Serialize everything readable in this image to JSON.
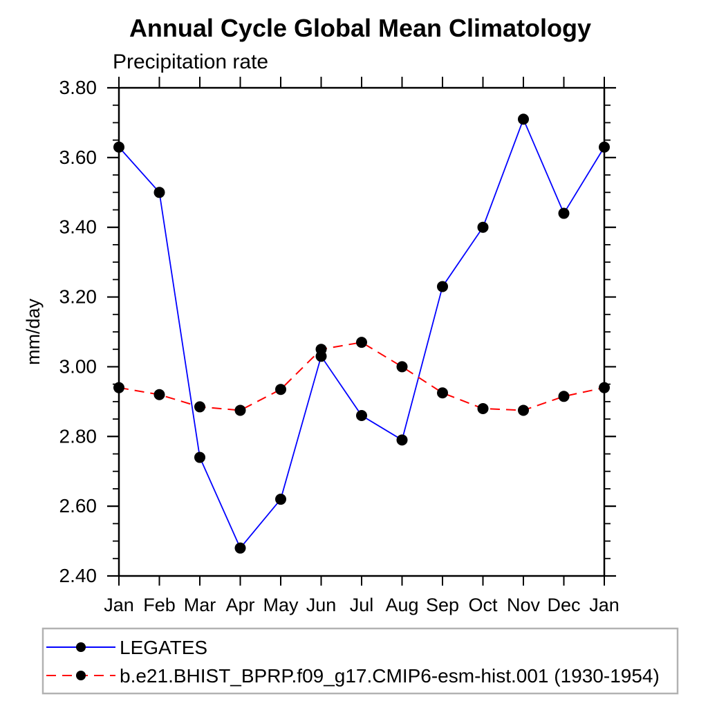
{
  "page": {
    "background": "#ffffff"
  },
  "chart_data": {
    "type": "line",
    "title": "Annual Cycle Global Mean Climatology",
    "subtitle": "Precipitation rate",
    "xlabel": "",
    "ylabel": "mm/day",
    "categories": [
      "Jan",
      "Feb",
      "Mar",
      "Apr",
      "May",
      "Jun",
      "Jul",
      "Aug",
      "Sep",
      "Oct",
      "Nov",
      "Dec",
      "Jan"
    ],
    "ylim": [
      2.4,
      3.8
    ],
    "ytick_major": 0.2,
    "ytick_minor": 0.05,
    "y_tick_labels": [
      "2.40",
      "2.60",
      "2.80",
      "3.00",
      "3.20",
      "3.40",
      "3.60",
      "3.80"
    ],
    "grid": false,
    "legend_position": "bottom",
    "axis_color": "#000000",
    "legend_border_color": "#b2b2b2",
    "series": [
      {
        "name": "LEGATES",
        "color": "#0000ff",
        "line_style": "solid",
        "marker": "circle",
        "marker_color": "#000000",
        "values": [
          3.63,
          3.5,
          2.74,
          2.48,
          2.62,
          3.03,
          2.86,
          2.79,
          3.23,
          3.4,
          3.71,
          3.44,
          3.63
        ]
      },
      {
        "name": "b.e21.BHIST_BPRP.f09_g17.CMIP6-esm-hist.001 (1930-1954)",
        "color": "#ff0000",
        "line_style": "dashed",
        "marker": "circle",
        "marker_color": "#000000",
        "values": [
          2.94,
          2.92,
          2.885,
          2.875,
          2.935,
          3.05,
          3.07,
          3.0,
          2.925,
          2.88,
          2.875,
          2.915,
          2.94
        ]
      }
    ]
  }
}
